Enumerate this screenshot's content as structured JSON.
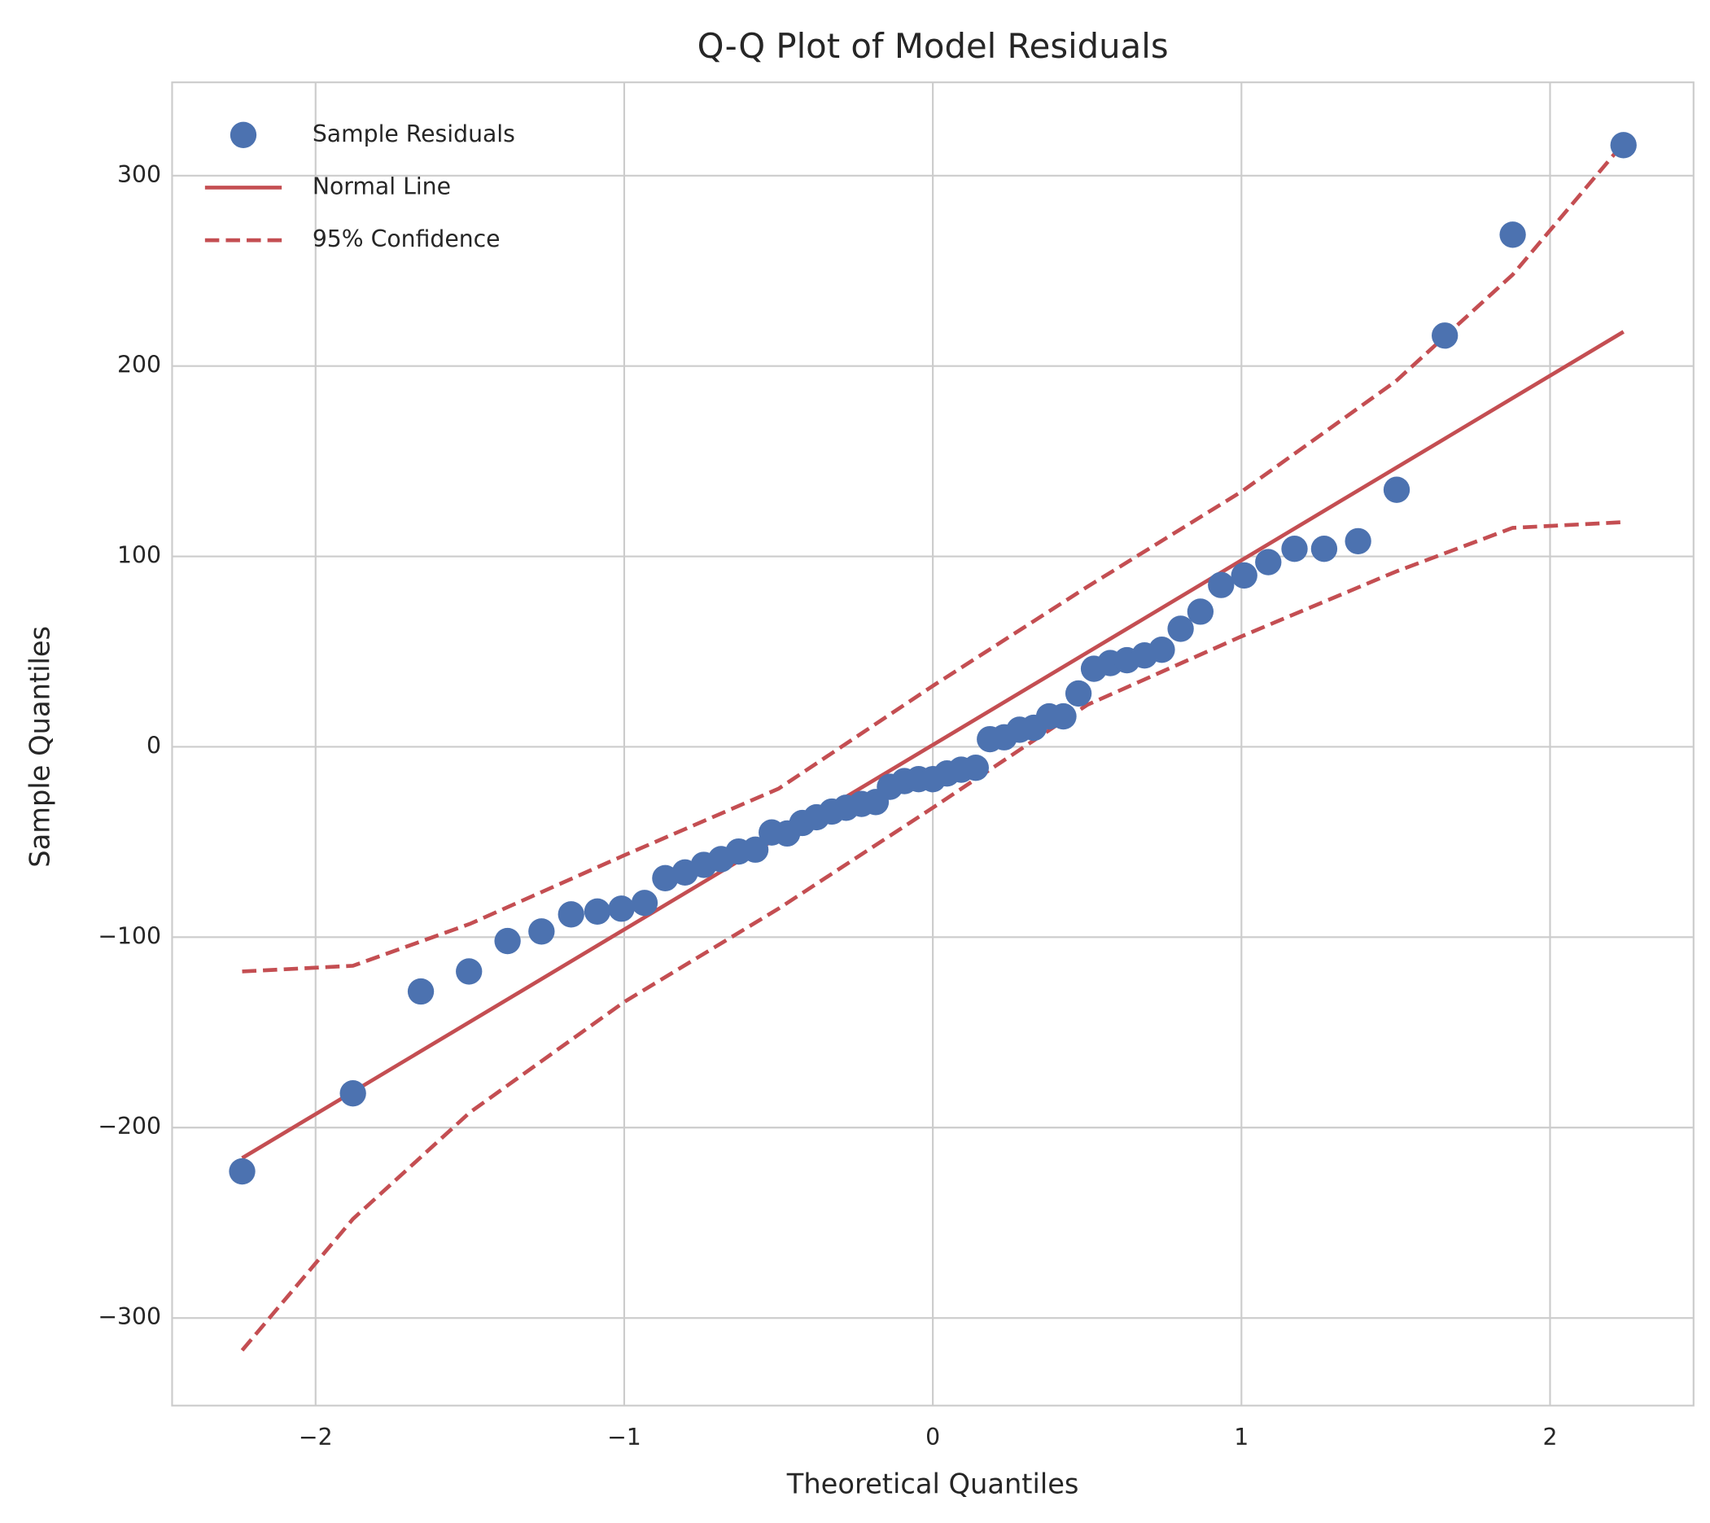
{
  "chart_data": {
    "type": "qq",
    "title": "Q-Q Plot of Model Residuals",
    "xlabel": "Theoretical Quantiles",
    "ylabel": "Sample Quantiles",
    "xlim": [
      -2.465,
      2.465
    ],
    "ylim": [
      -346,
      349
    ],
    "xticks": [
      {
        "value": -2,
        "label": "−2"
      },
      {
        "value": -1,
        "label": "−1"
      },
      0,
      1,
      2
    ],
    "yticks": [
      {
        "value": -300,
        "label": "−300"
      },
      {
        "value": -200,
        "label": "−200"
      },
      {
        "value": -100,
        "label": "−100"
      },
      0,
      100,
      200,
      300
    ],
    "grid": true,
    "legend": "upper left",
    "points": {
      "name": "Sample Residuals",
      "color": "#4c72b0",
      "x": [
        -2.238,
        -1.879,
        -1.659,
        -1.503,
        -1.378,
        -1.268,
        -1.172,
        -1.087,
        -1.009,
        -0.934,
        -0.867,
        -0.803,
        -0.742,
        -0.686,
        -0.629,
        -0.575,
        -0.522,
        -0.472,
        -0.423,
        -0.377,
        -0.327,
        -0.281,
        -0.231,
        -0.185,
        -0.139,
        -0.092,
        -0.046,
        0,
        0.046,
        0.092,
        0.139,
        0.185,
        0.231,
        0.281,
        0.327,
        0.377,
        0.423,
        0.472,
        0.522,
        0.575,
        0.629,
        0.686,
        0.742,
        0.803,
        0.867,
        0.934,
        1.009,
        1.087,
        1.172,
        1.268,
        1.378,
        1.503,
        1.659,
        1.879,
        2.238
      ],
      "values": [
        -223,
        -182,
        -128.5,
        -118,
        -102,
        -97,
        -88,
        -86.5,
        -85,
        -82,
        -69,
        -66,
        -62,
        -59,
        -55,
        -54,
        -45,
        -45.5,
        -40,
        -37,
        -34,
        -32,
        -30,
        -29,
        -21,
        -18,
        -17,
        -17,
        -14,
        -12,
        -11,
        4,
        5,
        9,
        10,
        16,
        16,
        28,
        41,
        44,
        45.5,
        48,
        51,
        62,
        71,
        85,
        90,
        97,
        104,
        104,
        108,
        135,
        216,
        269,
        316
      ]
    },
    "fit": {
      "name": "Normal Line",
      "color": "#c44e52",
      "x": [
        -2.238,
        2.238
      ],
      "values": [
        -216,
        218
      ]
    },
    "band": {
      "name": "95% Confidence",
      "color": "#c44e52",
      "x": [
        -2.238,
        -1.879,
        -1.5,
        -1,
        -0.5,
        0,
        0.5,
        1,
        1.5,
        1.879,
        2.238
      ],
      "upper": [
        -118,
        -115,
        -93,
        -57,
        -22,
        32,
        84,
        134,
        192,
        248,
        317
      ],
      "lower": [
        -317,
        -248,
        -192,
        -134,
        -85,
        -32,
        22,
        58,
        92,
        115,
        118
      ]
    }
  }
}
